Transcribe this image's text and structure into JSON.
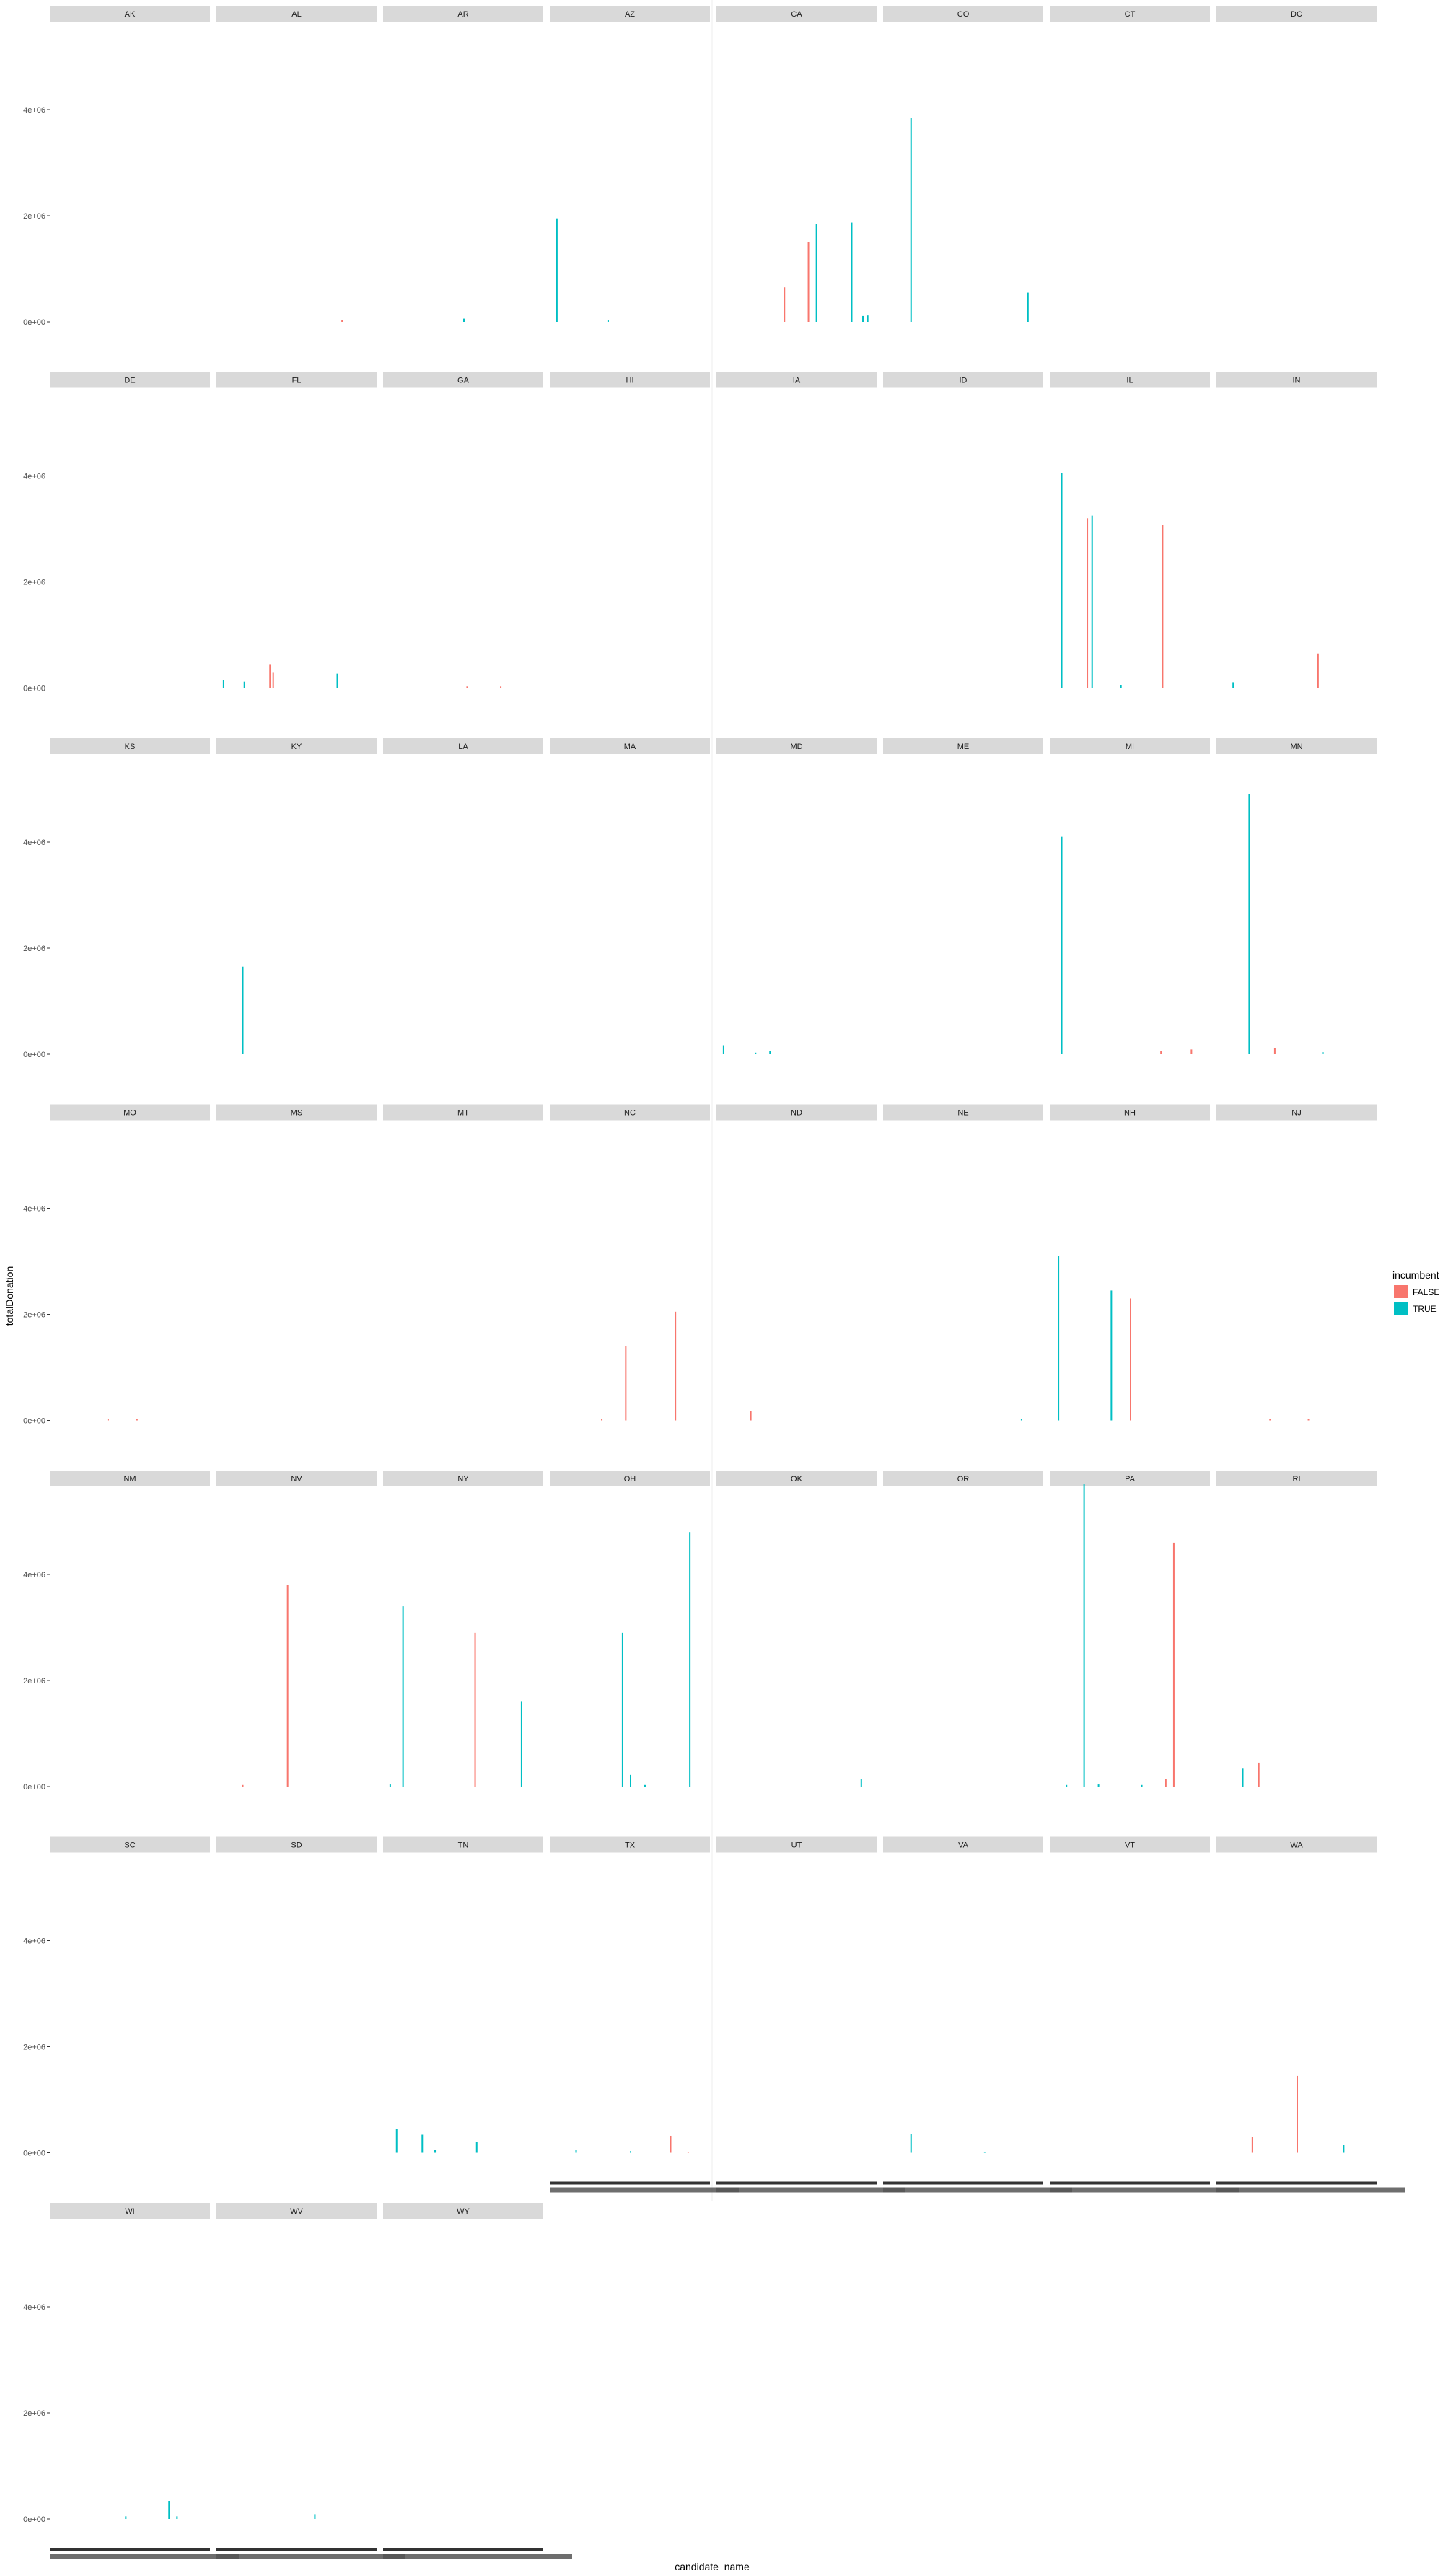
{
  "chart_data": {
    "type": "bar",
    "facet_by": "state",
    "facet_layout": "wrap, 8 columns",
    "xlabel": "candidate_name",
    "ylabel": "totalDonation",
    "y_ticks": [
      "0e+00",
      "2e+06",
      "4e+06"
    ],
    "ylim": [
      0,
      5700000
    ],
    "legend": {
      "title": "incumbent",
      "position": "right",
      "entries": [
        {
          "label": "FALSE",
          "color": "#F8766D"
        },
        {
          "label": "TRUE",
          "color": "#00BFC4"
        }
      ]
    },
    "panels": [
      {
        "state": "AK",
        "bars": []
      },
      {
        "state": "AL",
        "bars": [
          [
            0.78,
            30000,
            "FALSE"
          ]
        ]
      },
      {
        "state": "AR",
        "bars": [
          [
            0.5,
            60000,
            "TRUE"
          ]
        ]
      },
      {
        "state": "AZ",
        "bars": [
          [
            0.04,
            1950000,
            "TRUE"
          ],
          [
            0.36,
            30000,
            "TRUE"
          ]
        ]
      },
      {
        "state": "CA",
        "bars": [
          [
            0.42,
            650000,
            "FALSE"
          ],
          [
            0.57,
            1500000,
            "FALSE"
          ],
          [
            0.62,
            1850000,
            "TRUE"
          ],
          [
            0.84,
            1870000,
            "TRUE"
          ],
          [
            0.91,
            110000,
            "TRUE"
          ],
          [
            0.94,
            120000,
            "TRUE"
          ]
        ]
      },
      {
        "state": "CO",
        "bars": [
          [
            0.17,
            3850000,
            "TRUE"
          ],
          [
            0.9,
            550000,
            "TRUE"
          ]
        ]
      },
      {
        "state": "CT",
        "bars": []
      },
      {
        "state": "DC",
        "bars": []
      },
      {
        "state": "DE",
        "bars": []
      },
      {
        "state": "FL",
        "bars": [
          [
            0.04,
            150000,
            "TRUE"
          ],
          [
            0.17,
            120000,
            "TRUE"
          ],
          [
            0.33,
            450000,
            "FALSE"
          ],
          [
            0.35,
            300000,
            "FALSE"
          ],
          [
            0.75,
            270000,
            "TRUE"
          ]
        ]
      },
      {
        "state": "GA",
        "bars": [
          [
            0.52,
            30000,
            "FALSE"
          ],
          [
            0.73,
            30000,
            "FALSE"
          ]
        ]
      },
      {
        "state": "HI",
        "bars": []
      },
      {
        "state": "IA",
        "bars": []
      },
      {
        "state": "ID",
        "bars": []
      },
      {
        "state": "IL",
        "bars": [
          [
            0.07,
            4050000,
            "TRUE"
          ],
          [
            0.23,
            3200000,
            "FALSE"
          ],
          [
            0.26,
            3250000,
            "TRUE"
          ],
          [
            0.44,
            50000,
            "TRUE"
          ],
          [
            0.7,
            3070000,
            "FALSE"
          ]
        ]
      },
      {
        "state": "IN",
        "bars": [
          [
            0.1,
            110000,
            "TRUE"
          ],
          [
            0.63,
            650000,
            "FALSE"
          ]
        ]
      },
      {
        "state": "KS",
        "bars": []
      },
      {
        "state": "KY",
        "bars": [
          [
            0.16,
            1650000,
            "TRUE"
          ]
        ]
      },
      {
        "state": "LA",
        "bars": []
      },
      {
        "state": "MA",
        "bars": []
      },
      {
        "state": "MD",
        "bars": [
          [
            0.04,
            170000,
            "TRUE"
          ],
          [
            0.24,
            30000,
            "TRUE"
          ],
          [
            0.33,
            60000,
            "TRUE"
          ]
        ]
      },
      {
        "state": "ME",
        "bars": []
      },
      {
        "state": "MI",
        "bars": [
          [
            0.07,
            4100000,
            "TRUE"
          ],
          [
            0.69,
            60000,
            "FALSE"
          ],
          [
            0.88,
            90000,
            "FALSE"
          ]
        ]
      },
      {
        "state": "MN",
        "bars": [
          [
            0.2,
            4900000,
            "TRUE"
          ],
          [
            0.36,
            120000,
            "FALSE"
          ],
          [
            0.66,
            40000,
            "TRUE"
          ]
        ]
      },
      {
        "state": "MO",
        "bars": [
          [
            0.36,
            20000,
            "FALSE"
          ],
          [
            0.54,
            20000,
            "FALSE"
          ]
        ]
      },
      {
        "state": "MS",
        "bars": []
      },
      {
        "state": "MT",
        "bars": []
      },
      {
        "state": "NC",
        "bars": [
          [
            0.32,
            30000,
            "FALSE"
          ],
          [
            0.47,
            1400000,
            "FALSE"
          ],
          [
            0.78,
            2050000,
            "FALSE"
          ]
        ]
      },
      {
        "state": "ND",
        "bars": [
          [
            0.21,
            180000,
            "FALSE"
          ]
        ]
      },
      {
        "state": "NE",
        "bars": [
          [
            0.86,
            30000,
            "TRUE"
          ]
        ]
      },
      {
        "state": "NH",
        "bars": [
          [
            0.05,
            3100000,
            "TRUE"
          ],
          [
            0.38,
            2450000,
            "TRUE"
          ],
          [
            0.5,
            2300000,
            "FALSE"
          ]
        ]
      },
      {
        "state": "NJ",
        "bars": [
          [
            0.33,
            30000,
            "FALSE"
          ],
          [
            0.57,
            20000,
            "FALSE"
          ]
        ]
      },
      {
        "state": "NM",
        "bars": []
      },
      {
        "state": "NV",
        "bars": [
          [
            0.16,
            30000,
            "FALSE"
          ],
          [
            0.44,
            3800000,
            "FALSE"
          ]
        ]
      },
      {
        "state": "NY",
        "bars": [
          [
            0.04,
            40000,
            "TRUE"
          ],
          [
            0.12,
            3400000,
            "TRUE"
          ],
          [
            0.57,
            2900000,
            "FALSE"
          ],
          [
            0.86,
            1600000,
            "TRUE"
          ]
        ]
      },
      {
        "state": "OH",
        "bars": [
          [
            0.45,
            2900000,
            "TRUE"
          ],
          [
            0.5,
            220000,
            "TRUE"
          ],
          [
            0.59,
            30000,
            "TRUE"
          ],
          [
            0.87,
            4800000,
            "TRUE"
          ]
        ]
      },
      {
        "state": "OK",
        "bars": [
          [
            0.9,
            140000,
            "TRUE"
          ]
        ]
      },
      {
        "state": "OR",
        "bars": []
      },
      {
        "state": "PA",
        "bars": [
          [
            0.1,
            30000,
            "TRUE"
          ],
          [
            0.21,
            5700000,
            "TRUE"
          ],
          [
            0.3,
            40000,
            "TRUE"
          ],
          [
            0.57,
            30000,
            "TRUE"
          ],
          [
            0.72,
            140000,
            "FALSE"
          ],
          [
            0.77,
            4600000,
            "FALSE"
          ]
        ]
      },
      {
        "state": "RI",
        "bars": [
          [
            0.16,
            350000,
            "TRUE"
          ],
          [
            0.26,
            450000,
            "FALSE"
          ]
        ]
      },
      {
        "state": "SC",
        "bars": []
      },
      {
        "state": "SD",
        "bars": []
      },
      {
        "state": "TN",
        "bars": [
          [
            0.08,
            450000,
            "TRUE"
          ],
          [
            0.24,
            340000,
            "TRUE"
          ],
          [
            0.32,
            50000,
            "TRUE"
          ],
          [
            0.58,
            200000,
            "TRUE"
          ]
        ]
      },
      {
        "state": "TX",
        "bars": [
          [
            0.16,
            60000,
            "TRUE"
          ],
          [
            0.5,
            30000,
            "TRUE"
          ],
          [
            0.75,
            320000,
            "FALSE"
          ],
          [
            0.86,
            20000,
            "FALSE"
          ]
        ]
      },
      {
        "state": "UT",
        "bars": []
      },
      {
        "state": "VA",
        "bars": [
          [
            0.17,
            350000,
            "TRUE"
          ],
          [
            0.63,
            20000,
            "TRUE"
          ]
        ]
      },
      {
        "state": "VT",
        "bars": []
      },
      {
        "state": "WA",
        "bars": [
          [
            0.22,
            300000,
            "FALSE"
          ],
          [
            0.5,
            1450000,
            "FALSE"
          ],
          [
            0.79,
            150000,
            "TRUE"
          ]
        ]
      },
      {
        "state": "WI",
        "bars": [
          [
            0.47,
            50000,
            "TRUE"
          ],
          [
            0.74,
            340000,
            "TRUE"
          ],
          [
            0.79,
            50000,
            "TRUE"
          ]
        ]
      },
      {
        "state": "WV",
        "bars": [
          [
            0.61,
            90000,
            "TRUE"
          ]
        ]
      },
      {
        "state": "WY",
        "bars": []
      }
    ]
  }
}
